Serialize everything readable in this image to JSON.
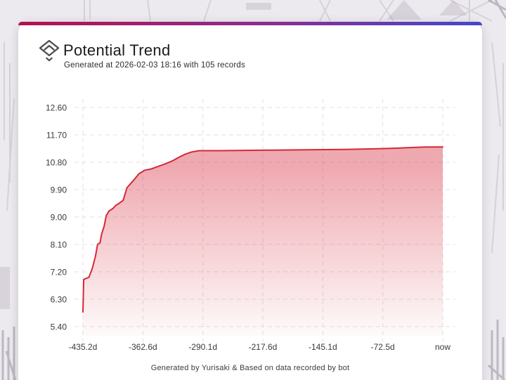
{
  "card": {
    "title": "Potential Trend",
    "subtitle": "Generated at 2026-02-03 18:16 with 105 records",
    "footer": "Generated by Yurisaki & Based on data recorded by bot"
  },
  "theme": {
    "accent_gradient": [
      "#b5104e",
      "#8a2d93",
      "#4348cb"
    ],
    "line_color": "#d62839",
    "area_fill_top": "rgba(214,40,57,0.40)",
    "area_fill_bottom": "rgba(214,40,57,0.02)",
    "grid_color": "#e2e2e2",
    "tick_text_color": "#3a3a3a",
    "card_background": "#ffffff",
    "page_background": "#eceaee"
  },
  "chart_data": {
    "type": "area",
    "title": "Potential Trend",
    "xlabel": "",
    "ylabel": "",
    "x_tick_labels": [
      "-435.2d",
      "-362.6d",
      "-290.1d",
      "-217.6d",
      "-145.1d",
      "-72.5d",
      "now"
    ],
    "y_tick_labels": [
      "5.40",
      "6.30",
      "7.20",
      "8.10",
      "9.00",
      "9.90",
      "10.80",
      "11.70",
      "12.60"
    ],
    "x_range_days": [
      -435.2,
      0
    ],
    "ylim": [
      5.4,
      12.6
    ],
    "grid": "dashed",
    "legend": "none",
    "points": [
      [
        -435.2,
        5.88
      ],
      [
        -434.3,
        6.95
      ],
      [
        -428,
        7.02
      ],
      [
        -424,
        7.3
      ],
      [
        -420,
        7.72
      ],
      [
        -417.5,
        8.1
      ],
      [
        -414.5,
        8.16
      ],
      [
        -412.5,
        8.45
      ],
      [
        -409.5,
        8.7
      ],
      [
        -407,
        9.05
      ],
      [
        -403.5,
        9.2
      ],
      [
        -399,
        9.28
      ],
      [
        -395.5,
        9.38
      ],
      [
        -391,
        9.46
      ],
      [
        -386.5,
        9.55
      ],
      [
        -382,
        9.96
      ],
      [
        -377.5,
        10.1
      ],
      [
        -373.5,
        10.22
      ],
      [
        -367.5,
        10.42
      ],
      [
        -360.5,
        10.54
      ],
      [
        -352.5,
        10.58
      ],
      [
        -344.5,
        10.66
      ],
      [
        -335.5,
        10.75
      ],
      [
        -326.5,
        10.85
      ],
      [
        -318,
        10.98
      ],
      [
        -311,
        11.07
      ],
      [
        -303.5,
        11.14
      ],
      [
        -294.5,
        11.18
      ],
      [
        -270,
        11.18
      ],
      [
        -240,
        11.19
      ],
      [
        -205,
        11.2
      ],
      [
        -165,
        11.21
      ],
      [
        -120,
        11.22
      ],
      [
        -82,
        11.24
      ],
      [
        -60,
        11.26
      ],
      [
        -32,
        11.29
      ],
      [
        -20,
        11.3
      ],
      [
        0,
        11.3
      ]
    ]
  }
}
